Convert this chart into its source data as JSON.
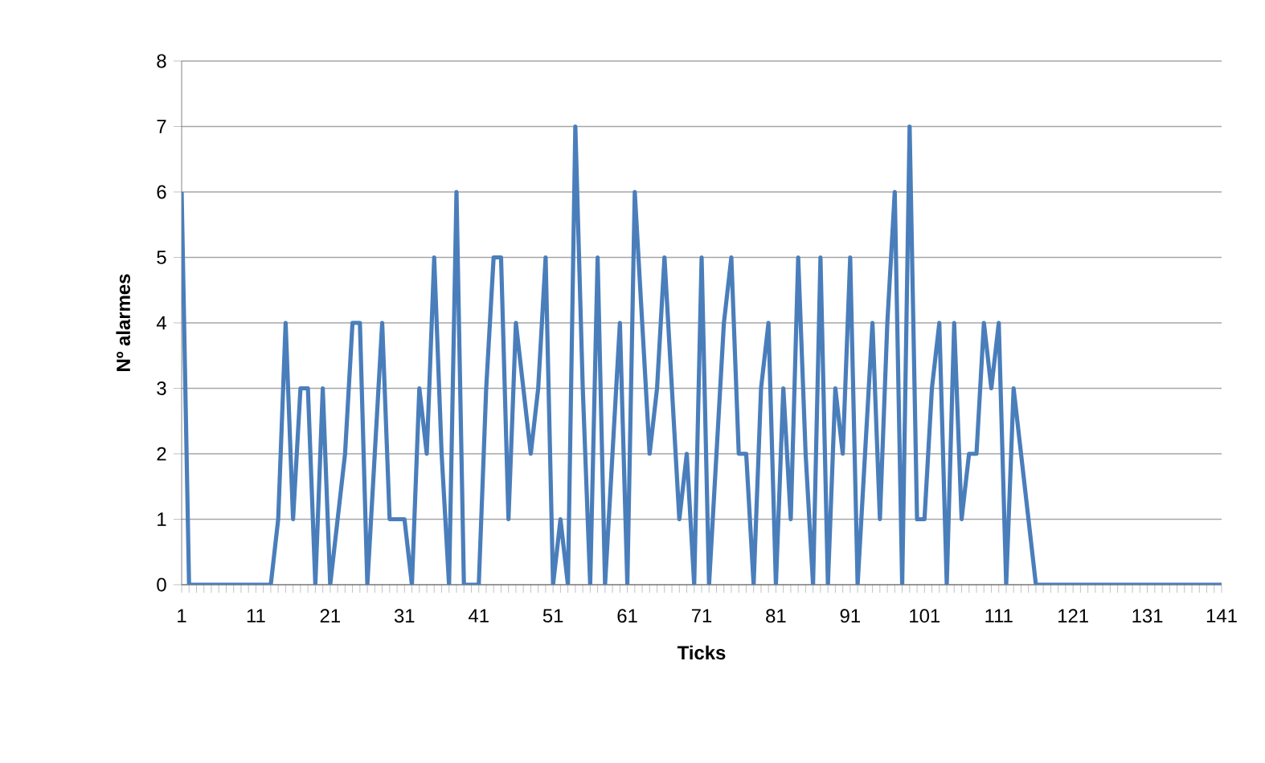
{
  "chart_data": {
    "type": "line",
    "xlabel": "Ticks",
    "ylabel": "Nº alarmes",
    "categories": [
      "1",
      null,
      null,
      null,
      null,
      null,
      null,
      null,
      null,
      null,
      "11",
      null,
      null,
      null,
      null,
      null,
      null,
      null,
      null,
      null,
      "21",
      null,
      null,
      null,
      null,
      null,
      null,
      null,
      null,
      null,
      "31",
      null,
      null,
      null,
      null,
      null,
      null,
      null,
      null,
      null,
      "41",
      null,
      null,
      null,
      null,
      null,
      null,
      null,
      null,
      null,
      "51",
      null,
      null,
      null,
      null,
      null,
      null,
      null,
      null,
      null,
      "61",
      null,
      null,
      null,
      null,
      null,
      null,
      null,
      null,
      null,
      "71",
      null,
      null,
      null,
      null,
      null,
      null,
      null,
      null,
      null,
      "81",
      null,
      null,
      null,
      null,
      null,
      null,
      null,
      null,
      null,
      "91",
      null,
      null,
      null,
      null,
      null,
      null,
      null,
      null,
      null,
      "101",
      null,
      null,
      null,
      null,
      null,
      null,
      null,
      null,
      null,
      "111",
      null,
      null,
      null,
      null,
      null,
      null,
      null,
      null,
      null,
      "121",
      null,
      null,
      null,
      null,
      null,
      null,
      null,
      null,
      null,
      "131",
      null,
      null,
      null,
      null,
      null,
      null,
      null,
      null,
      null,
      "141"
    ],
    "values": [
      6,
      0,
      0,
      0,
      0,
      0,
      0,
      0,
      0,
      0,
      0,
      0,
      0,
      1,
      4,
      1,
      3,
      3,
      0,
      3,
      0,
      1,
      2,
      4,
      4,
      0,
      2,
      4,
      1,
      1,
      1,
      0,
      3,
      2,
      5,
      2,
      0,
      6,
      0,
      0,
      0,
      3,
      5,
      5,
      1,
      4,
      3,
      2,
      3,
      5,
      0,
      1,
      0,
      7,
      3,
      0,
      5,
      0,
      2,
      4,
      0,
      6,
      4,
      2,
      3,
      5,
      3,
      1,
      2,
      0,
      5,
      0,
      2,
      4,
      5,
      2,
      2,
      0,
      3,
      4,
      0,
      3,
      1,
      5,
      2,
      0,
      5,
      0,
      3,
      2,
      5,
      0,
      2,
      4,
      1,
      4,
      6,
      0,
      7,
      1,
      1,
      3,
      4,
      0,
      4,
      1,
      2,
      2,
      4,
      3,
      4,
      0,
      3,
      2,
      1,
      0,
      0,
      0,
      0,
      0,
      0,
      0,
      0,
      0,
      0,
      0,
      0,
      0,
      0,
      0,
      0,
      0,
      0,
      0,
      0,
      0,
      0,
      0,
      0,
      0,
      0
    ],
    "color": "#4a7ebb",
    "ylim": [
      0,
      8
    ],
    "yticks": [
      0,
      1,
      2,
      3,
      4,
      5,
      6,
      7,
      8
    ],
    "grid": "y"
  }
}
